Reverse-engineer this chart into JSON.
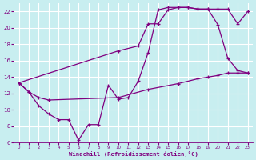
{
  "bg_color": "#c8eef0",
  "line_color": "#800080",
  "grid_color": "#ffffff",
  "xlabel": "Windchill (Refroidissement éolien,°C)",
  "xlabel_color": "#800080",
  "xtick_color": "#800080",
  "ytick_color": "#800080",
  "xlim": [
    -0.5,
    23.5
  ],
  "ylim": [
    6,
    23
  ],
  "yticks": [
    6,
    8,
    10,
    12,
    14,
    16,
    18,
    20,
    22
  ],
  "xticks": [
    0,
    1,
    2,
    3,
    4,
    5,
    6,
    7,
    8,
    9,
    10,
    11,
    12,
    13,
    14,
    15,
    16,
    17,
    18,
    19,
    20,
    21,
    22,
    23
  ],
  "line1_x": [
    0,
    1,
    2,
    3,
    4,
    5,
    6,
    7,
    8,
    9,
    10,
    11,
    12,
    13,
    14,
    15,
    16,
    17,
    18,
    19,
    20,
    21,
    22,
    23
  ],
  "line1_y": [
    13.3,
    12.2,
    10.5,
    9.5,
    8.8,
    8.8,
    6.3,
    8.2,
    8.2,
    13.0,
    11.3,
    11.5,
    13.5,
    17.0,
    22.2,
    22.5,
    22.5,
    22.5,
    22.3,
    22.3,
    20.4,
    16.3,
    14.8,
    14.5
  ],
  "line2_x": [
    0,
    10,
    12,
    13,
    14,
    15,
    16,
    17,
    18,
    19,
    20,
    21,
    22,
    23
  ],
  "line2_y": [
    13.3,
    17.2,
    17.8,
    20.5,
    20.5,
    22.2,
    22.5,
    22.5,
    22.3,
    22.3,
    22.3,
    22.3,
    20.5,
    22.0
  ],
  "line3_x": [
    0,
    1,
    2,
    3,
    10,
    13,
    16,
    18,
    19,
    20,
    21,
    22,
    23
  ],
  "line3_y": [
    13.3,
    12.2,
    11.5,
    11.2,
    11.5,
    12.5,
    13.2,
    13.8,
    14.0,
    14.2,
    14.5,
    14.5,
    14.5
  ]
}
